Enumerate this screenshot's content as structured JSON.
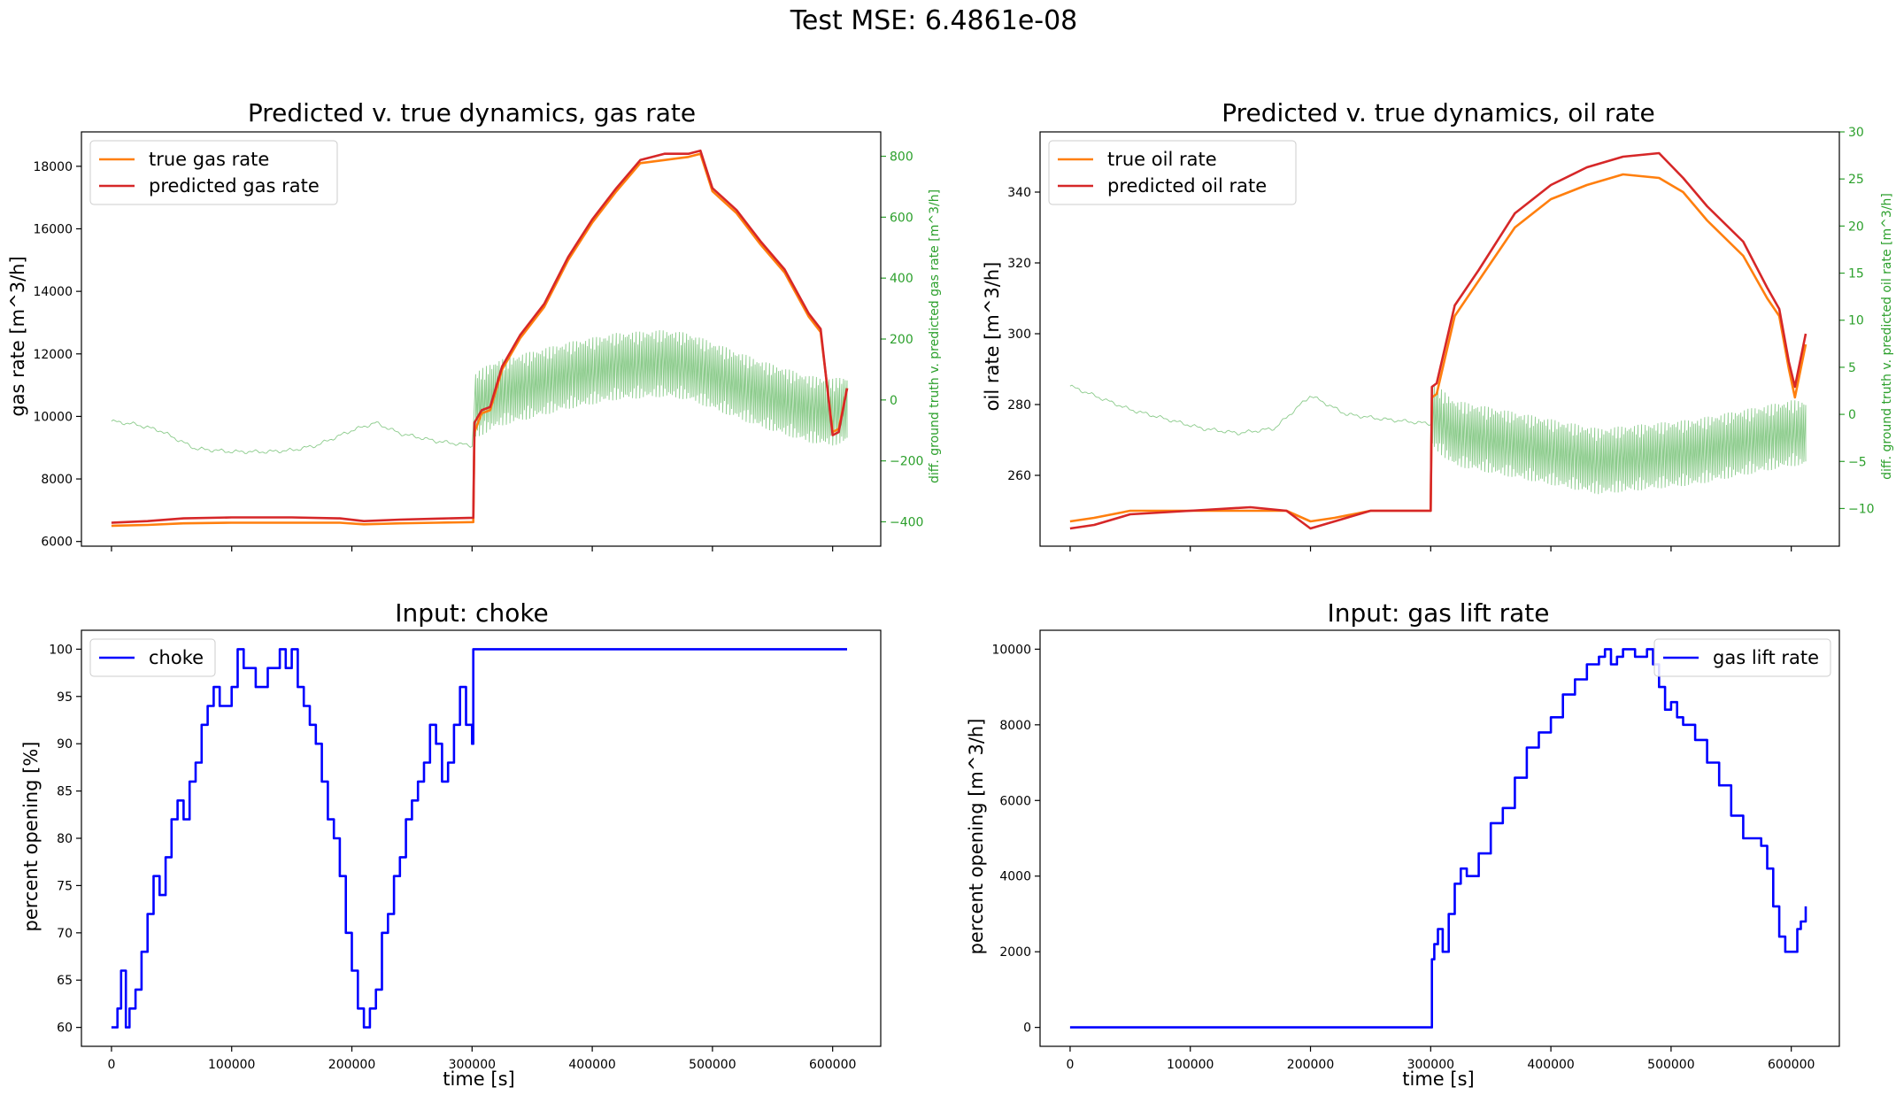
{
  "suptitle": "Test MSE: 6.4861e-08",
  "colors": {
    "true_series": "#ff7f0e",
    "pred_series": "#d62728",
    "diff_series": "#2ca02c",
    "input_series": "#0000ff",
    "axis": "#000000"
  },
  "chart_data": [
    {
      "id": "gas",
      "type": "line",
      "title": "Predicted v. true dynamics, gas rate",
      "xlabel": "",
      "ylabel": "gas rate [m^3/h]",
      "y2label": "diff. ground truth v. predicted gas rate [m^3/h]",
      "xlim": [
        -25000,
        640000
      ],
      "ylim": [
        5850,
        19100
      ],
      "y2lim": [
        -480,
        880
      ],
      "xticks": [
        0,
        100000,
        200000,
        300000,
        400000,
        500000,
        600000
      ],
      "yticks": [
        6000,
        8000,
        10000,
        12000,
        14000,
        16000,
        18000
      ],
      "y2ticks": [
        -400,
        -200,
        0,
        200,
        400,
        600,
        800
      ],
      "show_xticklabels": false,
      "legend": {
        "position": "top-left",
        "entries": [
          "true gas rate",
          "predicted gas rate"
        ]
      },
      "series": [
        {
          "name": "true gas rate",
          "axis": "y1",
          "role": "true",
          "x": [
            0,
            30000,
            60000,
            100000,
            150000,
            190000,
            210000,
            240000,
            270000,
            301000,
            302000,
            308000,
            315000,
            325000,
            340000,
            360000,
            380000,
            400000,
            420000,
            440000,
            460000,
            480000,
            490000,
            500000,
            520000,
            540000,
            560000,
            580000,
            590000,
            600000,
            605000,
            612000
          ],
          "y": [
            6500,
            6530,
            6580,
            6600,
            6600,
            6600,
            6550,
            6580,
            6600,
            6620,
            9500,
            10100,
            10200,
            11500,
            12500,
            13500,
            15000,
            16200,
            17200,
            18100,
            18200,
            18300,
            18400,
            17200,
            16500,
            15500,
            14600,
            13200,
            12700,
            9500,
            9600,
            10900
          ]
        },
        {
          "name": "predicted gas rate",
          "axis": "y1",
          "role": "pred",
          "x": [
            0,
            30000,
            60000,
            100000,
            150000,
            190000,
            210000,
            240000,
            270000,
            301000,
            302000,
            308000,
            315000,
            325000,
            340000,
            360000,
            380000,
            400000,
            420000,
            440000,
            460000,
            480000,
            490000,
            500000,
            520000,
            540000,
            560000,
            580000,
            590000,
            600000,
            605000,
            612000
          ],
          "y": [
            6600,
            6650,
            6740,
            6770,
            6770,
            6740,
            6650,
            6700,
            6730,
            6760,
            9800,
            10200,
            10300,
            11600,
            12600,
            13600,
            15100,
            16300,
            17300,
            18200,
            18400,
            18400,
            18500,
            17300,
            16600,
            15600,
            14700,
            13300,
            12800,
            9400,
            9500,
            10900
          ]
        },
        {
          "name": "diff",
          "axis": "y2",
          "role": "diff",
          "dense_from": 302000,
          "spread": 110,
          "x": [
            0,
            20000,
            40000,
            70000,
            100000,
            130000,
            150000,
            170000,
            200000,
            220000,
            240000,
            270000,
            300000,
            302000,
            320000,
            340000,
            380000,
            420000,
            460000,
            480000,
            500000,
            540000,
            580000,
            600000,
            612000
          ],
          "y": [
            -70,
            -80,
            -100,
            -160,
            -170,
            -170,
            -165,
            -150,
            -100,
            -75,
            -110,
            -135,
            -150,
            -20,
            20,
            40,
            80,
            110,
            120,
            110,
            80,
            20,
            -30,
            -40,
            -30
          ]
        }
      ]
    },
    {
      "id": "oil",
      "type": "line",
      "title": "Predicted v. true dynamics, oil rate",
      "xlabel": "",
      "ylabel": "oil rate [m^3/h]",
      "y2label": "diff. ground truth v. predicted oil rate [m^3/h]",
      "xlim": [
        -25000,
        640000
      ],
      "ylim": [
        240,
        357
      ],
      "y2lim": [
        -14,
        30
      ],
      "xticks": [
        0,
        100000,
        200000,
        300000,
        400000,
        500000,
        600000
      ],
      "yticks": [
        260,
        280,
        300,
        320,
        340
      ],
      "y2ticks": [
        -10,
        -5,
        0,
        5,
        10,
        15,
        20,
        25,
        30
      ],
      "show_xticklabels": false,
      "legend": {
        "position": "top-left",
        "entries": [
          "true oil rate",
          "predicted oil rate"
        ]
      },
      "series": [
        {
          "name": "true oil rate",
          "axis": "y1",
          "role": "true",
          "x": [
            0,
            20000,
            50000,
            100000,
            150000,
            180000,
            200000,
            220000,
            250000,
            300000,
            301000,
            305000,
            320000,
            340000,
            370000,
            400000,
            430000,
            460000,
            490000,
            510000,
            530000,
            560000,
            580000,
            590000,
            598000,
            603000,
            612000
          ],
          "y": [
            247,
            248,
            250,
            250,
            250,
            250,
            247,
            248,
            250,
            250,
            282,
            283,
            305,
            315,
            330,
            338,
            342,
            345,
            344,
            340,
            332,
            322,
            310,
            305,
            290,
            282,
            297
          ]
        },
        {
          "name": "predicted oil rate",
          "axis": "y1",
          "role": "pred",
          "x": [
            0,
            20000,
            50000,
            100000,
            150000,
            180000,
            200000,
            220000,
            250000,
            300000,
            301000,
            305000,
            320000,
            340000,
            370000,
            400000,
            430000,
            460000,
            490000,
            510000,
            530000,
            560000,
            580000,
            590000,
            598000,
            603000,
            612000
          ],
          "y": [
            245,
            246,
            249,
            250,
            251,
            250,
            245,
            247,
            250,
            250,
            285,
            286,
            308,
            318,
            334,
            342,
            347,
            350,
            351,
            344,
            336,
            326,
            313,
            307,
            292,
            285,
            300
          ]
        },
        {
          "name": "diff",
          "axis": "y2",
          "role": "diff",
          "dense_from": 301000,
          "spread": 3.5,
          "x": [
            0,
            20000,
            50000,
            80000,
            110000,
            140000,
            170000,
            200000,
            230000,
            260000,
            300000,
            301000,
            320000,
            360000,
            400000,
            440000,
            480000,
            520000,
            560000,
            600000,
            612000
          ],
          "y": [
            3,
            2,
            0.5,
            -0.5,
            -1.5,
            -2,
            -1.5,
            2,
            0,
            -0.5,
            -1,
            0,
            -2,
            -3,
            -4,
            -5,
            -4.5,
            -4,
            -3,
            -2,
            -2
          ]
        }
      ]
    },
    {
      "id": "choke",
      "type": "line",
      "title": "Input: choke",
      "xlabel": "time [s]",
      "ylabel": "percent opening [%]",
      "xlim": [
        -25000,
        640000
      ],
      "ylim": [
        58,
        102
      ],
      "xticks": [
        0,
        100000,
        200000,
        300000,
        400000,
        500000,
        600000
      ],
      "yticks": [
        60,
        65,
        70,
        75,
        80,
        85,
        90,
        95,
        100
      ],
      "show_xticklabels": true,
      "legend": {
        "position": "top-left",
        "entries": [
          "choke"
        ]
      },
      "series": [
        {
          "name": "choke",
          "axis": "y1",
          "role": "input",
          "step": true,
          "x": [
            0,
            5000,
            8000,
            12000,
            15000,
            20000,
            25000,
            30000,
            35000,
            40000,
            45000,
            50000,
            55000,
            60000,
            65000,
            70000,
            75000,
            80000,
            85000,
            90000,
            100000,
            105000,
            110000,
            120000,
            130000,
            140000,
            145000,
            150000,
            155000,
            160000,
            165000,
            170000,
            175000,
            180000,
            185000,
            190000,
            195000,
            200000,
            205000,
            210000,
            215000,
            220000,
            225000,
            230000,
            235000,
            240000,
            245000,
            250000,
            255000,
            260000,
            265000,
            270000,
            275000,
            280000,
            285000,
            290000,
            295000,
            300000,
            301000,
            612000
          ],
          "y": [
            60,
            62,
            66,
            60,
            62,
            64,
            68,
            72,
            76,
            74,
            78,
            82,
            84,
            82,
            86,
            88,
            92,
            94,
            96,
            94,
            96,
            100,
            98,
            96,
            98,
            100,
            98,
            100,
            96,
            94,
            92,
            90,
            86,
            82,
            80,
            76,
            70,
            66,
            62,
            60,
            62,
            64,
            70,
            72,
            76,
            78,
            82,
            84,
            86,
            88,
            92,
            90,
            86,
            88,
            92,
            96,
            92,
            90,
            100,
            100
          ]
        }
      ]
    },
    {
      "id": "gaslift",
      "type": "line",
      "title": "Input: gas lift rate",
      "xlabel": "time [s]",
      "ylabel": "percent opening [m^3/h]",
      "xlim": [
        -25000,
        640000
      ],
      "ylim": [
        -500,
        10500
      ],
      "xticks": [
        0,
        100000,
        200000,
        300000,
        400000,
        500000,
        600000
      ],
      "yticks": [
        0,
        2000,
        4000,
        6000,
        8000,
        10000
      ],
      "show_xticklabels": true,
      "legend": {
        "position": "top-right",
        "entries": [
          "gas lift rate"
        ]
      },
      "series": [
        {
          "name": "gas lift rate",
          "axis": "y1",
          "role": "input",
          "step": true,
          "x": [
            0,
            300000,
            301000,
            303000,
            306000,
            310000,
            315000,
            320000,
            325000,
            330000,
            340000,
            350000,
            360000,
            370000,
            380000,
            390000,
            400000,
            410000,
            420000,
            430000,
            440000,
            445000,
            450000,
            455000,
            460000,
            470000,
            480000,
            485000,
            490000,
            495000,
            500000,
            505000,
            510000,
            520000,
            530000,
            540000,
            550000,
            560000,
            570000,
            575000,
            580000,
            585000,
            590000,
            595000,
            600000,
            605000,
            608000,
            612000
          ],
          "y": [
            0,
            0,
            1800,
            2200,
            2600,
            2000,
            3000,
            3800,
            4200,
            4000,
            4600,
            5400,
            5800,
            6600,
            7400,
            7800,
            8200,
            8800,
            9200,
            9600,
            9800,
            10000,
            9600,
            9800,
            10000,
            9800,
            10000,
            9600,
            9000,
            8400,
            8600,
            8200,
            8000,
            7600,
            7000,
            6400,
            5600,
            5000,
            5000,
            4800,
            4200,
            3200,
            2400,
            2000,
            2000,
            2600,
            2800,
            3200
          ]
        }
      ]
    }
  ]
}
